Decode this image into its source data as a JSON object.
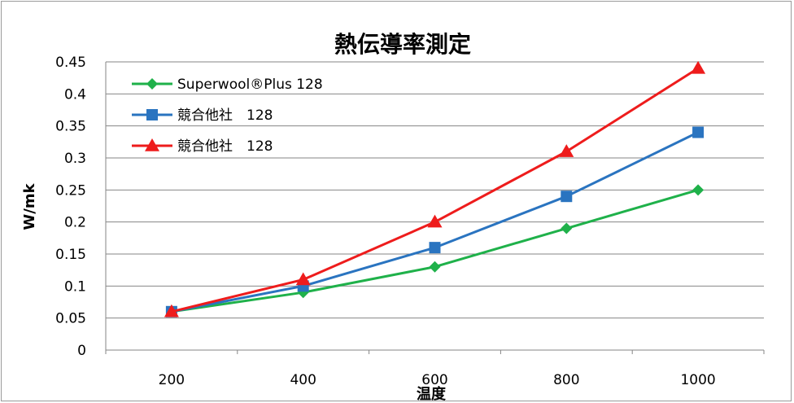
{
  "chart_data": {
    "type": "line",
    "title": "熱伝導率測定",
    "xlabel": "温度",
    "ylabel": "W/mk",
    "x": [
      200,
      400,
      600,
      800,
      1000
    ],
    "x_tick_labels": [
      "200",
      "400",
      "600",
      "800",
      "1000"
    ],
    "ylim": [
      0,
      0.45
    ],
    "y_tick_labels": [
      "0",
      "0.05",
      "0.1",
      "0.15",
      "0.2",
      "0.25",
      "0.3",
      "0.35",
      "0.4",
      "0.45"
    ],
    "grid": true,
    "legend_position": "top-left",
    "series": [
      {
        "name": "Superwool®Plus 128",
        "values": [
          0.06,
          0.09,
          0.13,
          0.19,
          0.25
        ],
        "color": "#1fb14a",
        "marker": "diamond"
      },
      {
        "name": "競合他社　128",
        "values": [
          0.06,
          0.1,
          0.16,
          0.24,
          0.34
        ],
        "color": "#2a74c0",
        "marker": "square"
      },
      {
        "name": "競合他社　128",
        "values": [
          0.06,
          0.11,
          0.2,
          0.31,
          0.44
        ],
        "color": "#ee1c1c",
        "marker": "triangle"
      }
    ]
  }
}
